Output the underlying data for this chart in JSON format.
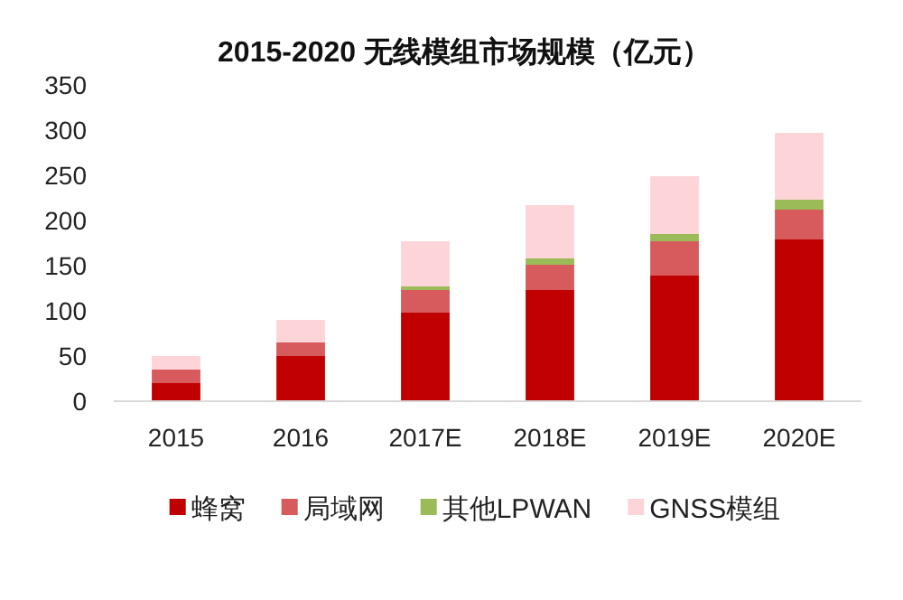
{
  "chart_data": {
    "type": "bar",
    "title": "2015-2020 无线模组市场规模（亿元）",
    "categories": [
      "2015",
      "2016",
      "2017E",
      "2018E",
      "2019E",
      "2020E"
    ],
    "stacked": true,
    "series": [
      {
        "name": "蜂窝",
        "color": "#c00000",
        "values": [
          20,
          50,
          98,
          123,
          139,
          179
        ]
      },
      {
        "name": "局域网",
        "color": "#d75a5c",
        "values": [
          15,
          15,
          25,
          28,
          38,
          33
        ]
      },
      {
        "name": "其他LPWAN",
        "color": "#9bbb59",
        "values": [
          0,
          0,
          4,
          7,
          8,
          11
        ]
      },
      {
        "name": "GNSS模组",
        "color": "#fdd5d8",
        "values": [
          15,
          25,
          50,
          59,
          64,
          74
        ]
      }
    ],
    "ylim": [
      0,
      350
    ],
    "yticks": [
      0,
      50,
      100,
      150,
      200,
      250,
      300,
      350
    ],
    "legend": "bottom"
  }
}
